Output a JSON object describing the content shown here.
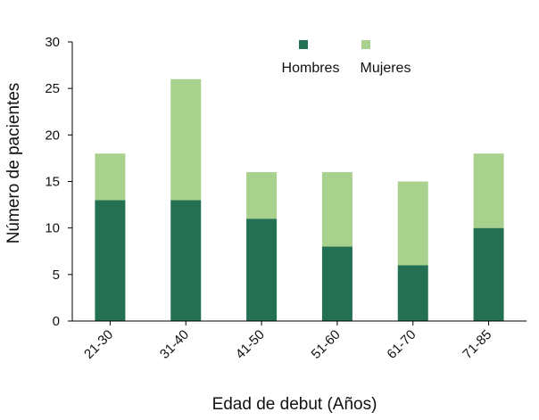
{
  "chart_data": {
    "type": "bar",
    "stacked": true,
    "categories": [
      "21-30",
      "31-40",
      "41-50",
      "51-60",
      "61-70",
      "71-85"
    ],
    "series": [
      {
        "name": "Hombres",
        "values": [
          13,
          13,
          11,
          8,
          6,
          10
        ],
        "color": "#237052"
      },
      {
        "name": "Mujeres",
        "values": [
          5,
          13,
          5,
          8,
          9,
          8
        ],
        "color": "#a9d18e"
      }
    ],
    "xlabel": "Edad de debut (Años)",
    "ylabel": "Número de pacientes",
    "ylim": [
      0,
      30
    ],
    "yticks": [
      0,
      5,
      10,
      15,
      20,
      25,
      30
    ],
    "grid": false,
    "legend_position": "top-right"
  }
}
